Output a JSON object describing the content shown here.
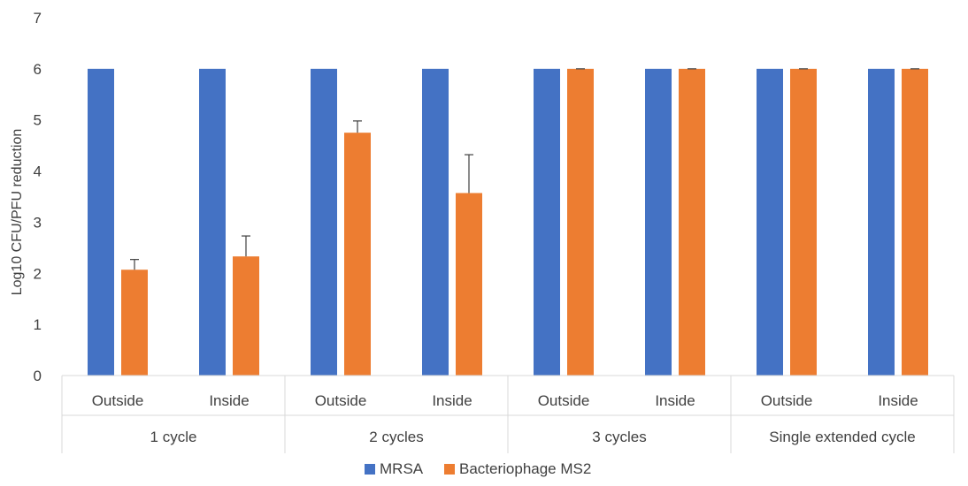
{
  "chart_data": {
    "type": "bar",
    "ylabel": "Log10 CFU/PFU reduction",
    "ylim": [
      0,
      7
    ],
    "yticks": [
      0,
      1,
      2,
      3,
      4,
      5,
      6,
      7
    ],
    "grid": false,
    "legend_position": "bottom",
    "groups": [
      {
        "label": "1 cycle",
        "categories": [
          "Outside",
          "Inside"
        ]
      },
      {
        "label": "2 cycles",
        "categories": [
          "Outside",
          "Inside"
        ]
      },
      {
        "label": "3 cycles",
        "categories": [
          "Outside",
          "Inside"
        ]
      },
      {
        "label": "Single extended cycle",
        "categories": [
          "Outside",
          "Inside"
        ]
      }
    ],
    "series": [
      {
        "name": "MRSA",
        "color": "#4472C4",
        "values": [
          6,
          6,
          6,
          6,
          6,
          6,
          6,
          6
        ],
        "errors": [
          0,
          0,
          0,
          0,
          0,
          0,
          0,
          0
        ]
      },
      {
        "name": "Bacteriophage MS2",
        "color": "#ED7D31",
        "values": [
          2.07,
          2.33,
          4.75,
          3.57,
          6,
          6,
          6,
          6
        ],
        "errors": [
          0.2,
          0.4,
          0.23,
          0.75,
          0,
          0,
          0,
          0
        ]
      }
    ]
  }
}
